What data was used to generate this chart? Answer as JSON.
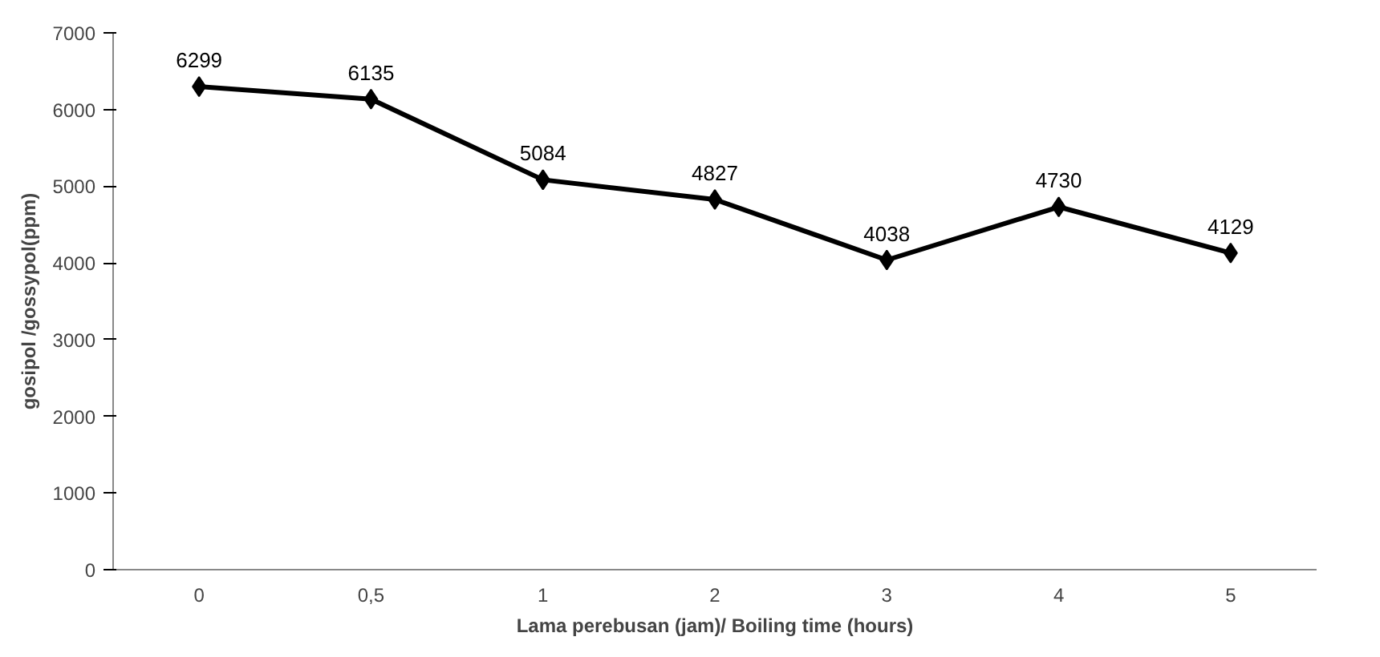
{
  "chart_data": {
    "type": "line",
    "xlabel": "Lama perebusan (jam)/ Boiling time (hours)",
    "ylabel": "gosipol /gossypol(ppm)",
    "categories": [
      "0",
      "0,5",
      "1",
      "2",
      "3",
      "4",
      "5"
    ],
    "series": [
      {
        "color": "#000000",
        "values": [
          6299,
          6135,
          5084,
          4827,
          4038,
          4730,
          4129
        ]
      }
    ],
    "ylim": [
      0,
      7000
    ],
    "yticks": [
      0,
      1000,
      2000,
      3000,
      4000,
      5000,
      6000,
      7000
    ],
    "data_labels": true,
    "marker": "diamond",
    "line_style": "solid",
    "grid": false
  }
}
